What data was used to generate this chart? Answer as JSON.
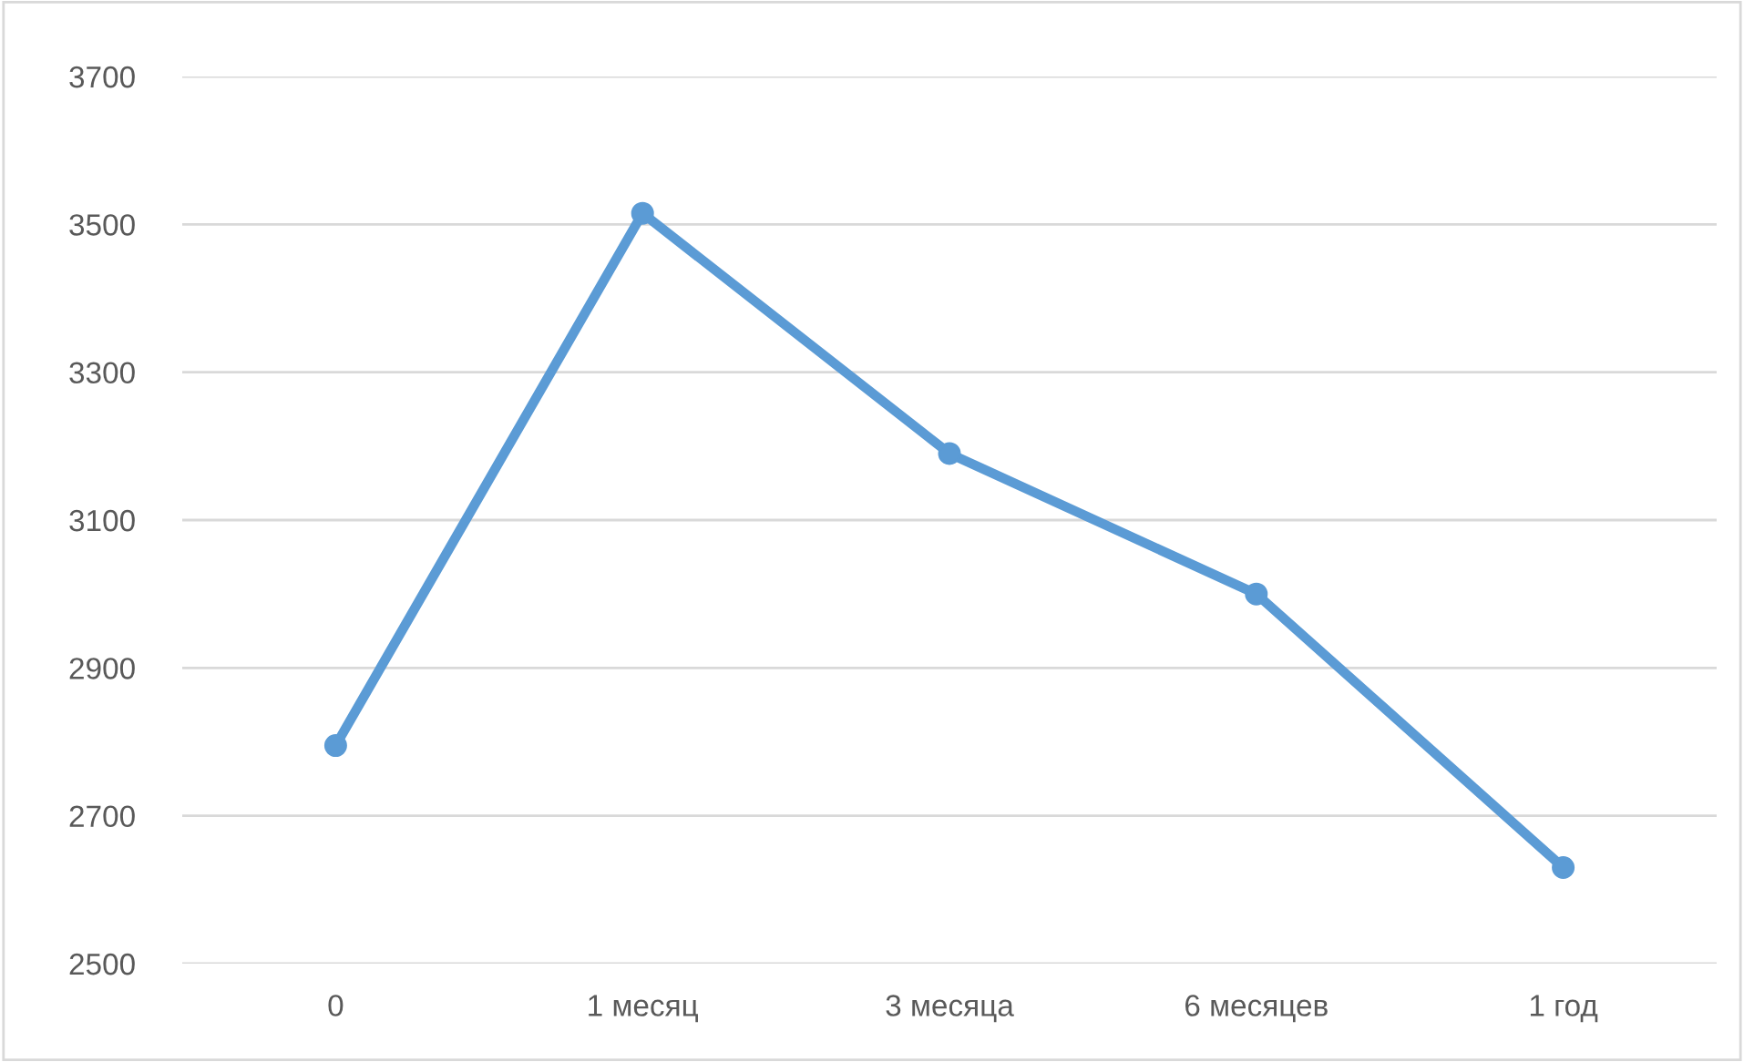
{
  "chart_data": {
    "type": "line",
    "categories": [
      "0",
      "1 месяц",
      "3 месяца",
      "6 месяцев",
      "1 год"
    ],
    "series": [
      {
        "color": "#5b9bd5",
        "values": [
          2795,
          3515,
          3190,
          3000,
          2630
        ]
      }
    ],
    "ylim": [
      2500,
      3700
    ],
    "yticks": [
      2500,
      2700,
      2900,
      3100,
      3300,
      3500,
      3700
    ],
    "grid": "y",
    "marker": "circle",
    "line_style": "solid"
  }
}
